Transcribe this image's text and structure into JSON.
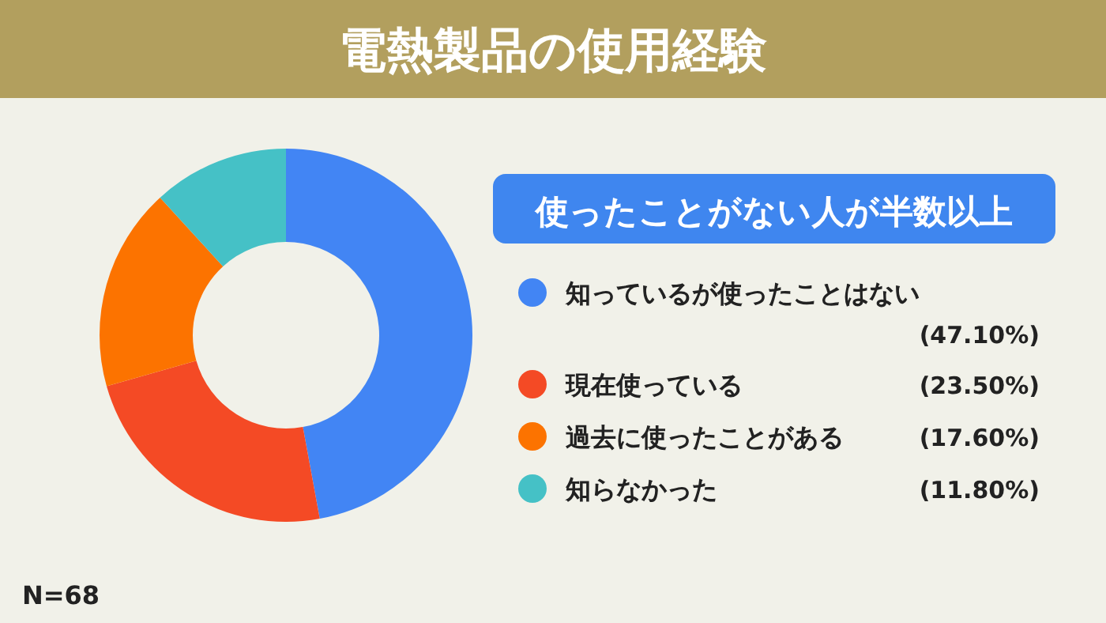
{
  "chart_data": {
    "type": "donut",
    "title": "電熱製品の使用経験",
    "subtitle": "使ったことがない人が半数以上",
    "categories": [
      "知っているが使ったことはない",
      "現在使っている",
      "過去に使ったことがある",
      "知らなかった"
    ],
    "values": [
      47.1,
      23.5,
      17.6,
      11.8
    ],
    "colors": [
      "#4285f4",
      "#f44a25",
      "#fc7300",
      "#45c1c6"
    ],
    "value_labels": [
      "(47.10%)",
      "(23.50%)",
      "(17.60%)",
      "(11.80%)"
    ],
    "legend": "right",
    "annotations": [
      "N=68"
    ]
  }
}
